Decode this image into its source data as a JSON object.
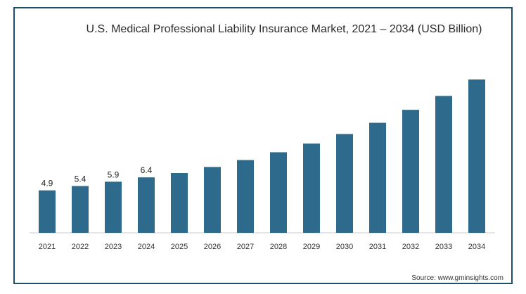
{
  "title": "U.S. Medical Professional Liability Insurance Market, 2021 – 2034 (USD Billion)",
  "source": "Source: www.gminsights.com",
  "colors": {
    "bar": "#2e6a8b",
    "frame": "#1d5068",
    "axis": "#cccccc"
  },
  "chart_data": {
    "type": "bar",
    "title": "U.S. Medical Professional Liability Insurance Market, 2021 – 2034 (USD Billion)",
    "xlabel": "",
    "ylabel": "",
    "categories": [
      "2021",
      "2022",
      "2023",
      "2024",
      "2025",
      "2026",
      "2027",
      "2028",
      "2029",
      "2030",
      "2031",
      "2032",
      "2033",
      "2034"
    ],
    "values": [
      4.9,
      5.4,
      5.9,
      6.4,
      6.9,
      7.6,
      8.4,
      9.3,
      10.3,
      11.4,
      12.7,
      14.2,
      15.8,
      17.7
    ],
    "data_labels": [
      "4.9",
      "5.4",
      "5.9",
      "6.4",
      "",
      "",
      "",
      "",
      "",
      "",
      "",
      "",
      "",
      ""
    ],
    "ylim": [
      0,
      18
    ],
    "grid": false,
    "legend": "none"
  }
}
